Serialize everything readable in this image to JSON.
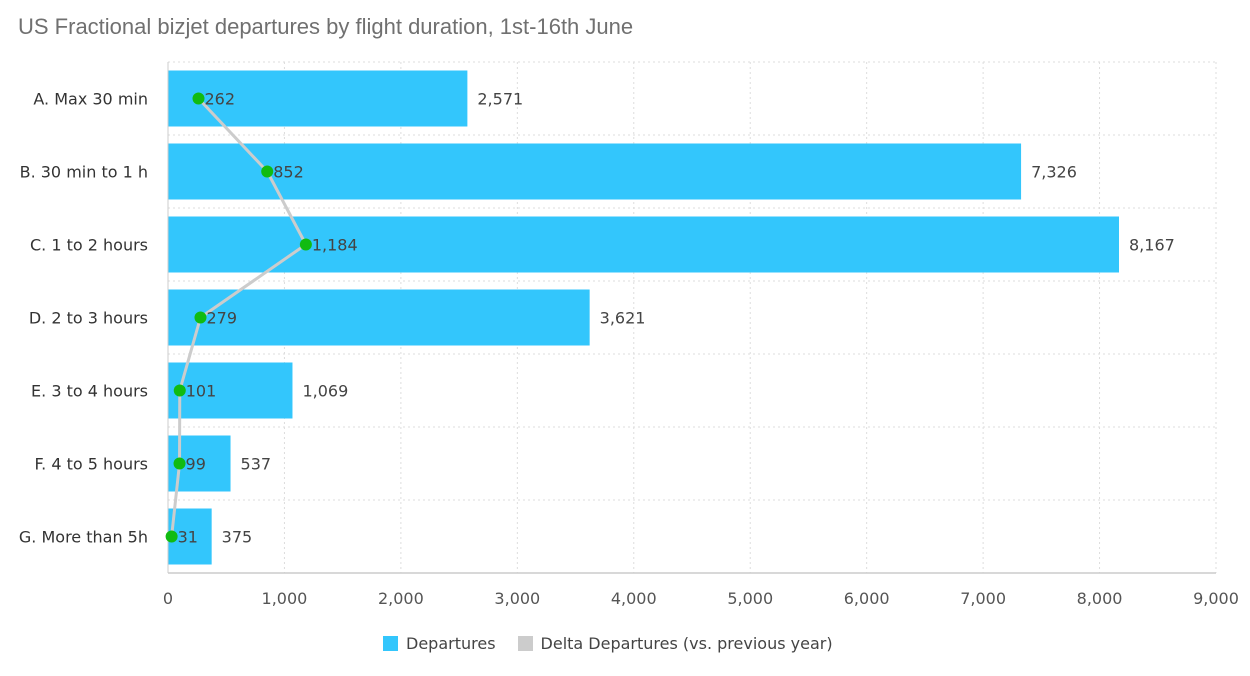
{
  "title": "US Fractional bizjet departures by flight duration, 1st-16th June",
  "colors": {
    "bar": "#33C6FC",
    "line": "#CCCCCC",
    "marker": "#11BB11",
    "grid": "#DDDDDD"
  },
  "chart_data": {
    "type": "bar",
    "orientation": "horizontal",
    "title": "US Fractional bizjet departures by flight duration, 1st-16th June",
    "categories": [
      "A. Max 30 min",
      "B. 30 min to 1 h",
      "C. 1 to 2 hours",
      "D. 2 to 3 hours",
      "E. 3 to 4 hours",
      "F. 4 to 5 hours",
      "G. More than 5h"
    ],
    "series": [
      {
        "name": "Departures",
        "type": "bar",
        "values": [
          2571,
          7326,
          8167,
          3621,
          1069,
          537,
          375
        ],
        "labels": [
          "2,571",
          "7,326",
          "8,167",
          "3,621",
          "1,069",
          "537",
          "375"
        ]
      },
      {
        "name": "Delta Departures (vs. previous year)",
        "type": "line",
        "values": [
          262,
          852,
          1184,
          279,
          101,
          99,
          31
        ],
        "labels": [
          "262",
          "852",
          "1,184",
          "279",
          "101",
          "99",
          "31"
        ]
      }
    ],
    "xlim": [
      0,
      9000
    ],
    "xticks": [
      0,
      1000,
      2000,
      3000,
      4000,
      5000,
      6000,
      7000,
      8000,
      9000
    ],
    "xtick_labels": [
      "0",
      "1,000",
      "2,000",
      "3,000",
      "4,000",
      "5,000",
      "6,000",
      "7,000",
      "8,000",
      "9,000"
    ],
    "grid": true,
    "legend": "bottom-center"
  },
  "legend": {
    "items": [
      "Departures",
      "Delta Departures (vs. previous year)"
    ]
  }
}
